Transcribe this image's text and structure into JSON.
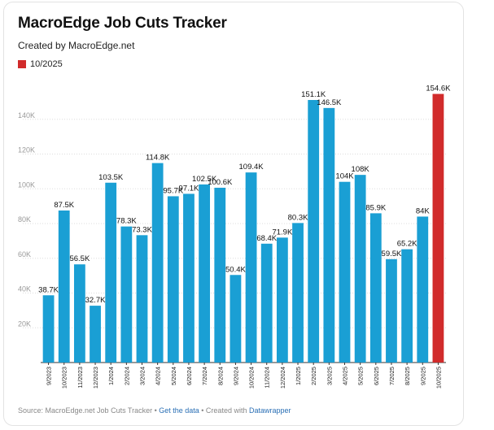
{
  "title": "MacroEdge Job Cuts Tracker",
  "subtitle": "Created by MacroEdge.net",
  "legend": {
    "label": "10/2025",
    "color": "#d12b2b"
  },
  "colors": {
    "bar": "#1a9fd4",
    "highlight": "#d12b2b",
    "grid": "#dddddd"
  },
  "footer": {
    "source": "Source: MacroEdge.net Job Cuts Tracker",
    "sep1": " • ",
    "get_data": "Get the data",
    "sep2": " • Created with ",
    "tool": "Datawrapper"
  },
  "chart_data": {
    "type": "bar",
    "title": "MacroEdge Job Cuts Tracker",
    "xlabel": "",
    "ylabel": "",
    "ylim": [
      0,
      160000
    ],
    "y_ticks": [
      20000,
      40000,
      60000,
      80000,
      100000,
      120000,
      140000
    ],
    "y_tick_labels": [
      "20K",
      "40K",
      "60K",
      "80K",
      "100K",
      "120K",
      "140K"
    ],
    "grid": true,
    "highlight_category": "10/2025",
    "categories": [
      "9/2023",
      "10/2023",
      "11/2023",
      "12/2023",
      "1/2024",
      "2/2024",
      "3/2024",
      "4/2024",
      "5/2024",
      "6/2024",
      "7/2024",
      "8/2024",
      "9/2024",
      "10/2024",
      "11/2024",
      "12/2024",
      "1/2025",
      "2/2025",
      "3/2025",
      "4/2025",
      "5/2025",
      "6/2025",
      "7/2025",
      "8/2025",
      "9/2025",
      "10/2025"
    ],
    "values": [
      38700,
      87500,
      56500,
      32700,
      103500,
      78300,
      73300,
      114800,
      95700,
      97100,
      102500,
      100600,
      50400,
      109400,
      68400,
      71900,
      80300,
      151100,
      146500,
      104000,
      108000,
      85900,
      59500,
      65200,
      84000,
      154600
    ],
    "labels": [
      "38.7K",
      "87.5K",
      "56.5K",
      "32.7K",
      "103.5K",
      "78.3K",
      "73.3K",
      "114.8K",
      "95.7K",
      "97.1K",
      "102.5K",
      "100.6K",
      "50.4K",
      "109.4K",
      "68.4K",
      "71.9K",
      "80.3K",
      "151.1K",
      "146.5K",
      "104K",
      "108K",
      "85.9K",
      "59.5K",
      "65.2K",
      "84K",
      "154.6K"
    ]
  }
}
